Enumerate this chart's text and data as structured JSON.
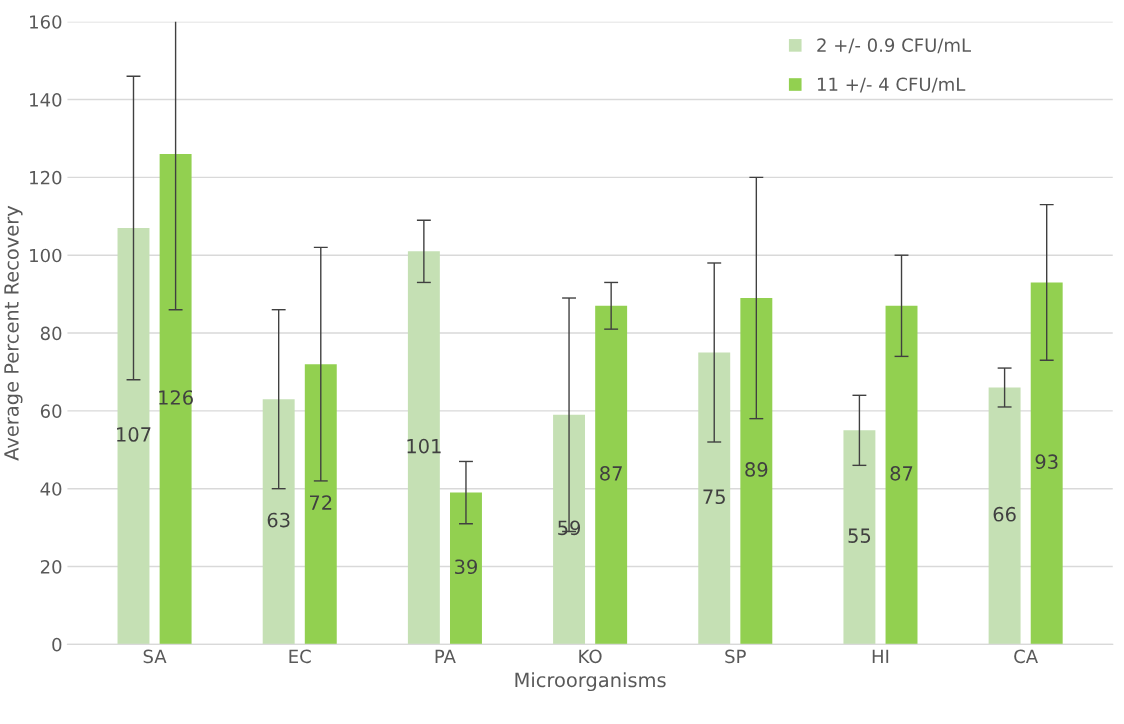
{
  "chart_data": {
    "type": "bar",
    "xlabel": "Microorganisms",
    "ylabel": "Average Percent Recovery",
    "categories": [
      "SA",
      "EC",
      "PA",
      "KO",
      "SP",
      "HI",
      "CA"
    ],
    "series": [
      {
        "name": "2 +/- 0.9 CFU/mL",
        "color": "#c5e0b4",
        "values": [
          107,
          63,
          101,
          59,
          75,
          55,
          66
        ],
        "errors": [
          39,
          23,
          8,
          30,
          23,
          9,
          5
        ]
      },
      {
        "name": "11 +/- 4 CFU/mL",
        "color": "#92d050",
        "values": [
          126,
          72,
          39,
          87,
          89,
          87,
          93
        ],
        "errors": [
          40,
          30,
          8,
          6,
          31,
          13,
          20
        ]
      }
    ],
    "ylim": [
      0,
      160
    ],
    "yticks": [
      0,
      20,
      40,
      60,
      80,
      100,
      120,
      140,
      160
    ],
    "grid": "y",
    "legend": "top right",
    "data_labels": true
  }
}
